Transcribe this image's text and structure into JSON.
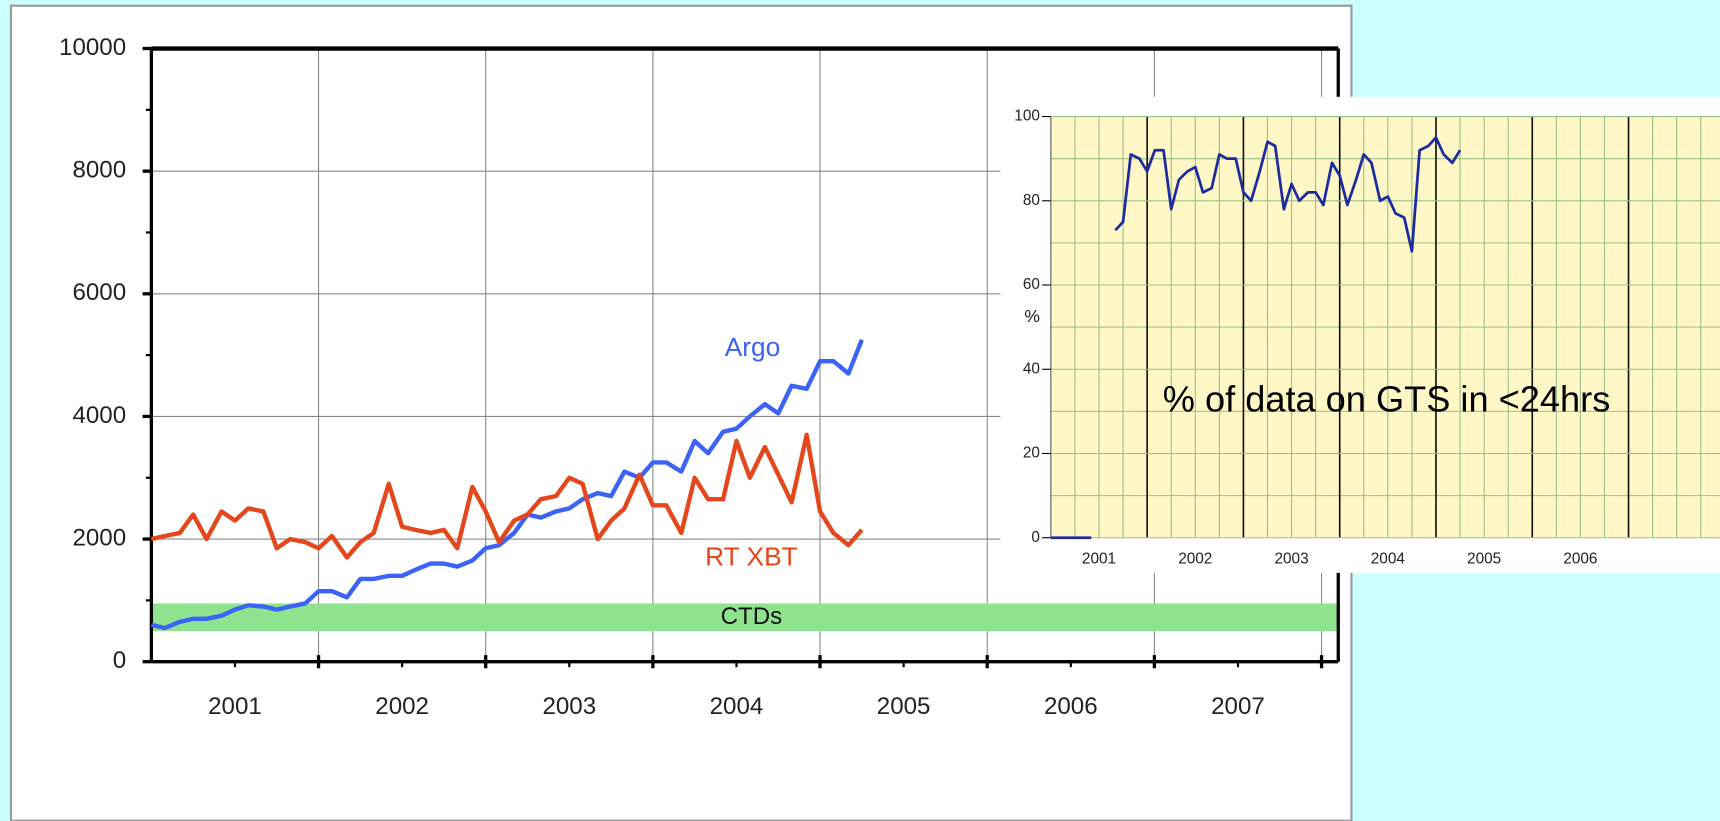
{
  "chart_data": [
    {
      "type": "line",
      "x": [
        2001,
        2001.08,
        2001.17,
        2001.25,
        2001.33,
        2001.42,
        2001.5,
        2001.58,
        2001.67,
        2001.75,
        2001.83,
        2001.92,
        2002,
        2002.08,
        2002.17,
        2002.25,
        2002.33,
        2002.42,
        2002.5,
        2002.58,
        2002.67,
        2002.75,
        2002.83,
        2002.92,
        2003,
        2003.08,
        2003.17,
        2003.25,
        2003.33,
        2003.42,
        2003.5,
        2003.58,
        2003.67,
        2003.75,
        2003.83,
        2003.92,
        2004,
        2004.08,
        2004.17,
        2004.25,
        2004.33,
        2004.42,
        2004.5,
        2004.58,
        2004.67,
        2004.75,
        2004.83,
        2004.92,
        2005,
        2005.08,
        2005.17,
        2005.25
      ],
      "series": [
        {
          "name": "Argo",
          "color": "#3b63f5",
          "values": [
            600,
            550,
            650,
            700,
            700,
            750,
            850,
            920,
            900,
            850,
            900,
            950,
            1150,
            1150,
            1050,
            1350,
            1350,
            1400,
            1400,
            1500,
            1600,
            1600,
            1550,
            1650,
            1850,
            1900,
            2100,
            2400,
            2350,
            2450,
            2500,
            2650,
            2750,
            2700,
            3100,
            3000,
            3250,
            3250,
            3100,
            3600,
            3400,
            3750,
            3800,
            4000,
            4200,
            4050,
            4500,
            4450,
            4900,
            4900,
            4700,
            5250
          ]
        },
        {
          "name": "RT XBT",
          "color": "#e5471c",
          "values": [
            2000,
            2050,
            2100,
            2400,
            2000,
            2450,
            2300,
            2500,
            2450,
            1850,
            2000,
            1950,
            1850,
            2050,
            1700,
            1950,
            2100,
            2900,
            2200,
            2150,
            2100,
            2150,
            1850,
            2850,
            2450,
            1950,
            2300,
            2400,
            2650,
            2700,
            3000,
            2900,
            2000,
            2300,
            2500,
            3050,
            2550,
            2550,
            2100,
            3000,
            2650,
            2650,
            3600,
            3000,
            3500,
            3050,
            2600,
            3700,
            2450,
            2100,
            1900,
            2150
          ]
        }
      ],
      "bands": [
        {
          "name": "CTDs",
          "range": [
            500,
            950
          ],
          "color": "#8fe38f"
        }
      ],
      "xlim": [
        2001,
        2008.1
      ],
      "ylim": [
        0,
        10000
      ],
      "yticks": [
        0,
        2000,
        4000,
        6000,
        8000,
        10000
      ],
      "yminor": [
        1000,
        3000,
        5000,
        7000,
        9000
      ],
      "xticks": [
        {
          "value": 2001.5,
          "label": "2001"
        },
        {
          "value": 2002.5,
          "label": "2002"
        },
        {
          "value": 2003.5,
          "label": "2003"
        },
        {
          "value": 2004.5,
          "label": "2004"
        },
        {
          "value": 2005.5,
          "label": "2005"
        },
        {
          "value": 2006.5,
          "label": "2006"
        },
        {
          "value": 2007.5,
          "label": "2007"
        }
      ],
      "xgrid": [
        2002,
        2003,
        2004,
        2005,
        2006,
        2007,
        2008
      ],
      "grid": true
    },
    {
      "type": "line",
      "x": [
        2001,
        2001.42,
        2001.5,
        2001.67,
        2001.75,
        2001.83,
        2001.92,
        2002,
        2002.08,
        2002.17,
        2002.25,
        2002.33,
        2002.42,
        2002.5,
        2002.58,
        2002.67,
        2002.75,
        2002.83,
        2002.92,
        2003,
        2003.08,
        2003.17,
        2003.25,
        2003.33,
        2003.42,
        2003.5,
        2003.58,
        2003.67,
        2003.75,
        2003.83,
        2003.92,
        2004,
        2004.08,
        2004.17,
        2004.25,
        2004.33,
        2004.42,
        2004.5,
        2004.58,
        2004.67,
        2004.75,
        2004.83,
        2004.92,
        2005,
        2005.08,
        2005.17,
        2005.25
      ],
      "series": [
        {
          "color": "#1c2b9e",
          "values": [
            0,
            0,
            null,
            73,
            75,
            91,
            90,
            87,
            92,
            92,
            78,
            85,
            87,
            88,
            82,
            83,
            91,
            90,
            90,
            82,
            80,
            87,
            94,
            93,
            78,
            84,
            80,
            82,
            82,
            79,
            89,
            86,
            79,
            85,
            91,
            89,
            80,
            81,
            77,
            76,
            68,
            92,
            93,
            95,
            91,
            89,
            92
          ]
        }
      ],
      "annotations": [
        "% of data on GTS in <24hrs"
      ],
      "ylabel": "%",
      "xlim": [
        2001,
        2007.95
      ],
      "ylim": [
        0,
        100
      ],
      "yticks": [
        0,
        20,
        40,
        60,
        80,
        100
      ],
      "ygrid": [
        10,
        30,
        50,
        70,
        90
      ],
      "xticks": [
        {
          "value": 2001.5,
          "label": "2001"
        },
        {
          "value": 2002.5,
          "label": "2002"
        },
        {
          "value": 2003.5,
          "label": "2003"
        },
        {
          "value": 2004.5,
          "label": "2004"
        },
        {
          "value": 2005.5,
          "label": "2005"
        },
        {
          "value": 2006.5,
          "label": "2006"
        }
      ],
      "xmajor": [
        2002,
        2003,
        2004,
        2005,
        2006,
        2007
      ],
      "xgrid": [
        2001.25,
        2001.5,
        2001.75,
        2002.25,
        2002.5,
        2002.75,
        2003.25,
        2003.5,
        2003.75,
        2004.25,
        2004.5,
        2004.75,
        2005.25,
        2005.5,
        2005.75,
        2006.25,
        2006.5,
        2006.75,
        2007.25,
        2007.5,
        2007.75
      ],
      "grid": true
    }
  ]
}
